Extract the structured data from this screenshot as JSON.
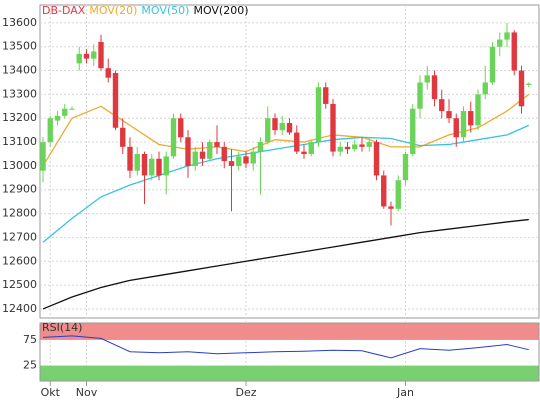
{
  "chart_data": [
    {
      "type": "candlestick",
      "categories": [
        null,
        "Okt",
        null,
        null,
        null,
        null,
        "Nov",
        null,
        null,
        null,
        null,
        null,
        null,
        null,
        null,
        null,
        null,
        null,
        null,
        null,
        null,
        null,
        null,
        null,
        null,
        null,
        null,
        null,
        "Dez",
        null,
        null,
        null,
        null,
        null,
        null,
        null,
        null,
        null,
        null,
        null,
        null,
        null,
        null,
        null,
        null,
        null,
        null,
        null,
        null,
        null,
        "Jan",
        null,
        null,
        null,
        null,
        null,
        null,
        null,
        null,
        null,
        null,
        null,
        null,
        null,
        null,
        null,
        null,
        null
      ],
      "series": [
        {
          "name": "DB-DAX",
          "color": "#e0383f",
          "up_color": "#6cd35a",
          "down_color": "#e0383f",
          "open": [
            12980,
            13100,
            13190,
            13210,
            13240,
            13430,
            13470,
            13450,
            13520,
            13410,
            13390,
            13160,
            13080,
            12980,
            13050,
            12960,
            13030,
            12960,
            13040,
            13200,
            13120,
            13000,
            13060,
            13030,
            13100,
            13080,
            13020,
            13000,
            13040,
            13010,
            13060,
            13100,
            13200,
            13150,
            13180,
            13140,
            13060,
            13050,
            13100,
            13330,
            13260,
            13060,
            13080,
            13070,
            13090,
            13080,
            13100,
            12960,
            12830,
            12820,
            12940,
            13050,
            13240,
            13350,
            13380,
            13280,
            13230,
            13200,
            13120,
            13230,
            13170,
            13300,
            13350,
            13500,
            13530,
            13560,
            13400,
            13340
          ],
          "high": [
            13120,
            13210,
            13230,
            13260,
            13250,
            13500,
            13490,
            13510,
            13550,
            13450,
            13400,
            13200,
            13120,
            13080,
            13060,
            13050,
            13060,
            13060,
            13220,
            13220,
            13150,
            13080,
            13100,
            13110,
            13170,
            13100,
            13070,
            13060,
            13060,
            13080,
            13120,
            13250,
            13220,
            13210,
            13200,
            13170,
            13090,
            13110,
            13350,
            13350,
            13280,
            13100,
            13100,
            13110,
            13120,
            13120,
            13110,
            12980,
            12850,
            12960,
            13060,
            13260,
            13380,
            13420,
            13400,
            13320,
            13280,
            13220,
            13250,
            13270,
            13320,
            13420,
            13520,
            13560,
            13600,
            13570,
            13420,
            13350
          ],
          "low": [
            12930,
            13080,
            13170,
            13200,
            13235,
            13400,
            13430,
            13420,
            13400,
            13350,
            13150,
            13050,
            12950,
            12960,
            12840,
            12940,
            12940,
            12880,
            13030,
            13100,
            12950,
            12980,
            13000,
            13020,
            13050,
            12990,
            12810,
            12980,
            12990,
            12980,
            12880,
            13090,
            13130,
            13130,
            13130,
            13050,
            13030,
            13040,
            13080,
            13240,
            13040,
            13040,
            13050,
            13060,
            13060,
            13060,
            12940,
            12820,
            12750,
            12810,
            12920,
            13040,
            13200,
            13320,
            13250,
            13200,
            13180,
            13080,
            13100,
            13140,
            13150,
            13280,
            13340,
            13460,
            13500,
            13380,
            13220,
            13330
          ],
          "close": [
            13100,
            13200,
            13210,
            13240,
            13240,
            13470,
            13450,
            13480,
            13410,
            13370,
            13160,
            13080,
            12980,
            13050,
            12960,
            13030,
            12960,
            13040,
            13200,
            13120,
            13000,
            13060,
            13030,
            13100,
            13080,
            13020,
            13000,
            13040,
            13010,
            13060,
            13100,
            13200,
            13150,
            13180,
            13140,
            13060,
            13050,
            13100,
            13330,
            13260,
            13060,
            13080,
            13070,
            13090,
            13080,
            13100,
            12960,
            12830,
            12820,
            12940,
            13050,
            13240,
            13350,
            13380,
            13280,
            13230,
            13200,
            13120,
            13230,
            13170,
            13300,
            13350,
            13500,
            13530,
            13560,
            13400,
            13250,
            13345
          ]
        }
      ],
      "overlays": [
        {
          "name": "MOV(20)",
          "color": "#f0a830",
          "x": [
            0,
            4,
            8,
            12,
            16,
            20,
            24,
            28,
            32,
            36,
            40,
            44,
            48,
            52,
            56,
            60,
            64,
            67
          ],
          "values": [
            13000,
            13200,
            13250,
            13170,
            13090,
            13070,
            13080,
            13060,
            13110,
            13100,
            13130,
            13120,
            13080,
            13080,
            13130,
            13160,
            13230,
            13300
          ]
        },
        {
          "name": "MOV(50)",
          "color": "#35c3e0",
          "x": [
            0,
            4,
            8,
            12,
            16,
            20,
            24,
            28,
            32,
            36,
            40,
            44,
            48,
            52,
            56,
            60,
            64,
            67
          ],
          "values": [
            12680,
            12780,
            12870,
            12920,
            12960,
            13000,
            13030,
            13050,
            13070,
            13090,
            13110,
            13120,
            13115,
            13085,
            13090,
            13110,
            13130,
            13170
          ]
        },
        {
          "name": "MOV(200)",
          "color": "#111111",
          "x": [
            0,
            4,
            8,
            12,
            16,
            20,
            24,
            28,
            32,
            36,
            40,
            44,
            48,
            52,
            56,
            60,
            64,
            67
          ],
          "values": [
            12400,
            12450,
            12490,
            12520,
            12540,
            12560,
            12580,
            12600,
            12620,
            12640,
            12660,
            12680,
            12700,
            12720,
            12735,
            12750,
            12765,
            12775
          ]
        }
      ],
      "ylim": [
        12362,
        13675
      ],
      "yticks": [
        12400,
        12500,
        12600,
        12700,
        12800,
        12900,
        13000,
        13100,
        13200,
        13300,
        13400,
        13500,
        13600
      ],
      "grid": true
    },
    {
      "type": "line",
      "title": "RSI(14)",
      "series": [
        {
          "color": "#2a3cc8",
          "x": [
            0,
            4,
            8,
            12,
            16,
            20,
            24,
            28,
            32,
            36,
            40,
            44,
            48,
            52,
            56,
            60,
            64,
            67
          ],
          "values": [
            80,
            83,
            78,
            52,
            50,
            52,
            48,
            50,
            52,
            53,
            55,
            54,
            40,
            58,
            55,
            60,
            66,
            56
          ]
        }
      ],
      "ylim": [
        -5,
        108
      ],
      "yticks": [
        25,
        75
      ],
      "upper_zone_color": "#f08c8c",
      "lower_zone_color": "#78d070"
    }
  ]
}
